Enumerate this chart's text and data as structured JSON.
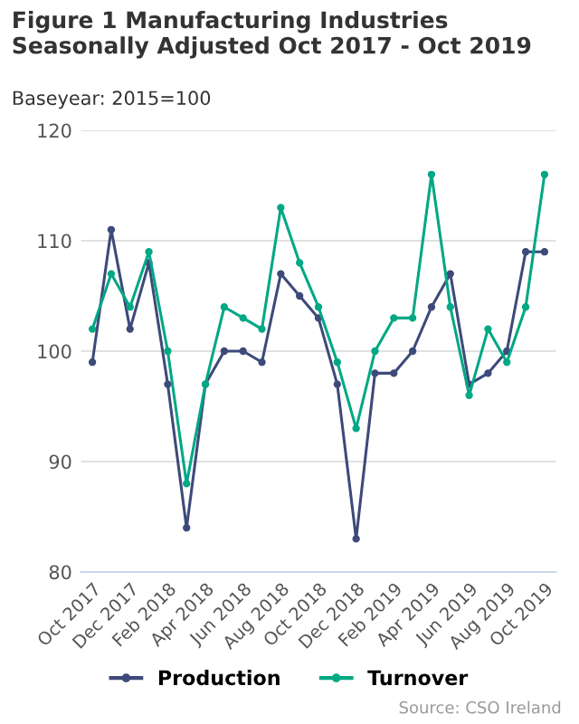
{
  "chart_data": {
    "type": "line",
    "title": "Figure 1 Manufacturing Industries\nSeasonally Adjusted Oct 2017 - Oct 2019",
    "subtitle": "Baseyear: 2015=100",
    "categories": [
      "Oct 2017",
      null,
      "Dec 2017",
      null,
      "Feb 2018",
      null,
      "Apr 2018",
      null,
      "Jun 2018",
      null,
      "Aug 2018",
      null,
      "Oct 2018",
      null,
      "Dec 2018",
      null,
      "Feb 2019",
      null,
      "Apr 2019",
      null,
      "Jun 2019",
      null,
      "Aug 2019",
      null,
      "Oct 2019"
    ],
    "series": [
      {
        "name": "Production",
        "color": "#3d4a7a",
        "values": [
          99,
          111,
          102,
          108,
          97,
          84,
          97,
          100,
          100,
          99,
          107,
          105,
          103,
          97,
          83,
          98,
          98,
          100,
          104,
          107,
          97,
          98,
          100,
          109,
          109
        ]
      },
      {
        "name": "Turnover",
        "color": "#00a884",
        "values": [
          102,
          107,
          104,
          109,
          100,
          88,
          97,
          104,
          103,
          102,
          113,
          108,
          104,
          99,
          93,
          100,
          103,
          103,
          116,
          104,
          96,
          102,
          99,
          104,
          116
        ]
      }
    ],
    "ylim": [
      80,
      120
    ],
    "yticks": [
      80,
      90,
      100,
      110,
      120
    ],
    "grid": "y",
    "legend": "bottom",
    "marker": "circle",
    "line_style": "solid",
    "annotations": [
      "Source: CSO Ireland"
    ]
  }
}
